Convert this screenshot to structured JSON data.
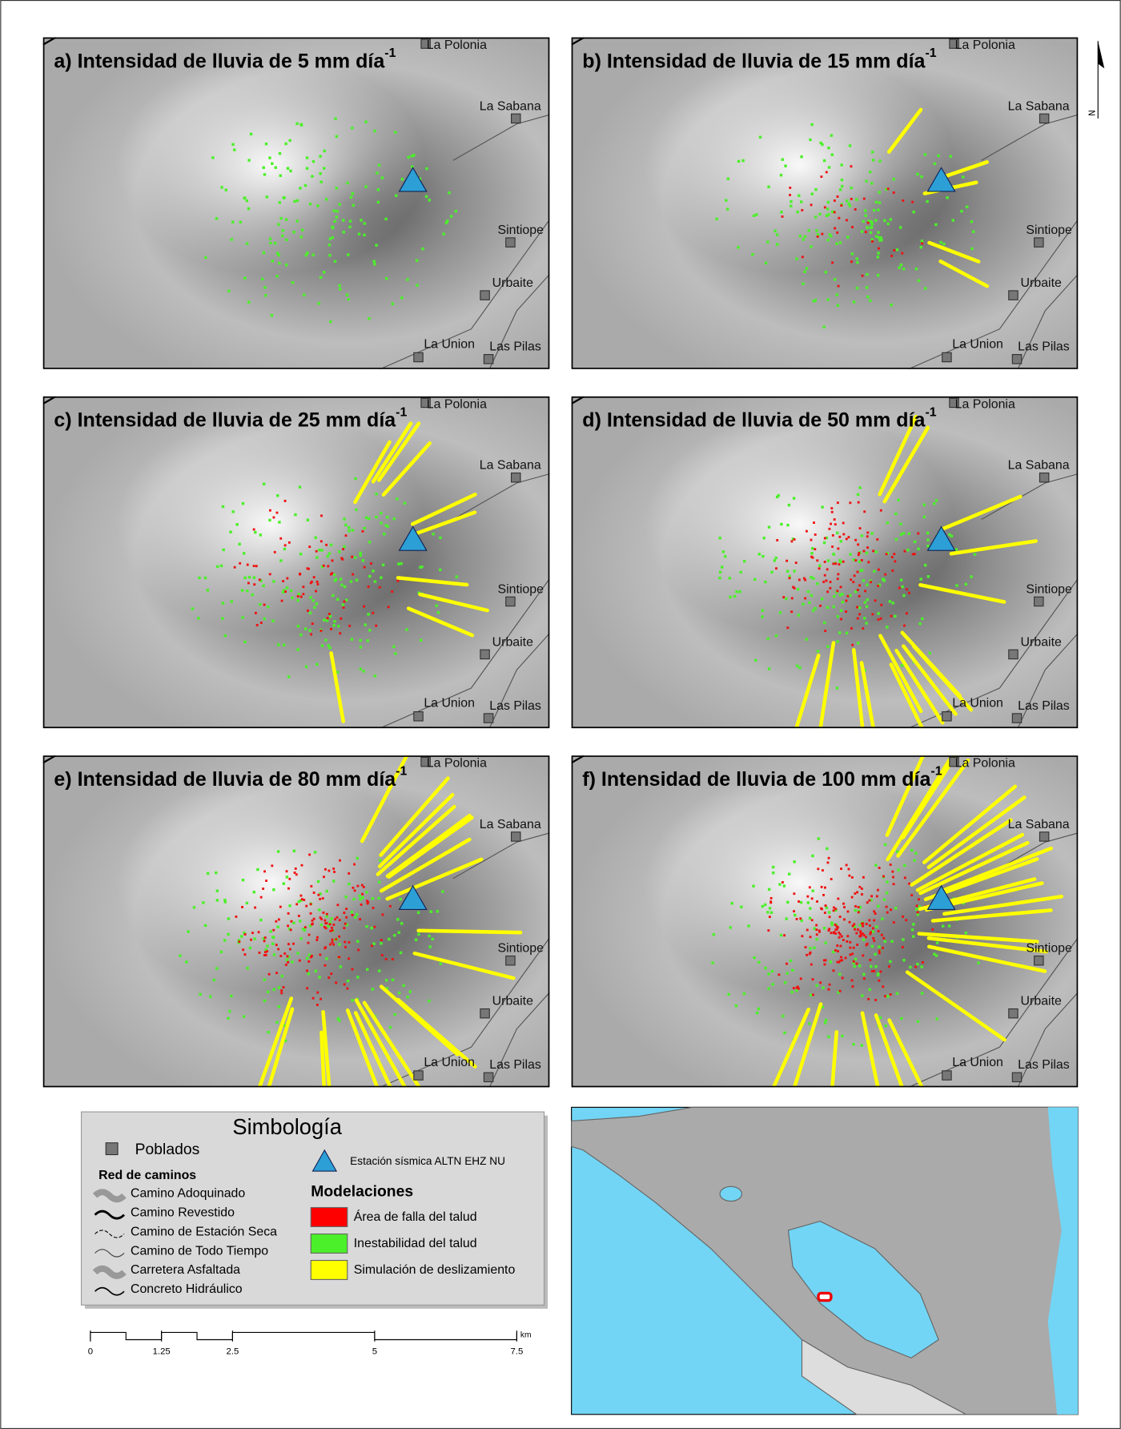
{
  "panels": [
    {
      "title": "a) Intensidad de lluvia de 5 mm día",
      "superscript": "-1"
    },
    {
      "title": "b) Intensidad de lluvia de 15 mm día",
      "superscript": "-1"
    },
    {
      "title": "c) Intensidad de lluvia de 25 mm día",
      "superscript": "-1"
    },
    {
      "title": "d) Intensidad de lluvia de 50 mm día",
      "superscript": "-1"
    },
    {
      "title": "e) Intensidad de lluvia de 80 mm día",
      "superscript": "-1"
    },
    {
      "title": "f) Intensidad de lluvia de 100 mm día",
      "superscript": "-1"
    }
  ],
  "places": [
    "La Polonia",
    "La Sabana",
    "Sintiope",
    "Urbaite",
    "La Union",
    "Las Pilas"
  ],
  "north": "N",
  "legend": {
    "title": "Simbología",
    "settlements": "Poblados",
    "station": "Estación sísmica ALTN EHZ NU",
    "roads_title": "Red de caminos",
    "roads": [
      "Camino Adoquinado",
      "Camino Revestido",
      "Camino de Estación Seca",
      "Camino de Todo Tiempo",
      "Carretera Asfaltada",
      "Concreto Hidráulico"
    ],
    "models_title": "Modelaciones",
    "models": [
      "Área de falla del talud",
      "Inestabilidad del talud",
      "Simulación de deslizamiento"
    ]
  },
  "scale": {
    "ticks": [
      0,
      1.25,
      2.5,
      5,
      7.5
    ],
    "unit": "km"
  }
}
